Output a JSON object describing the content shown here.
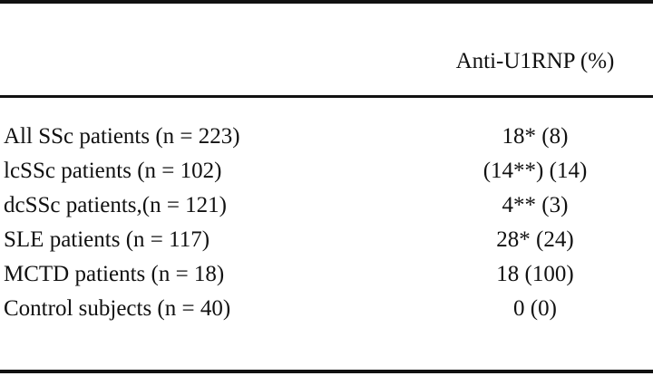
{
  "table": {
    "header": [
      "",
      "Anti-U1RNP (%)"
    ],
    "rows": [
      [
        "All SSc patients (n = 223)",
        "18* (8)"
      ],
      [
        "lcSSc patients (n = 102)",
        "(14**) (14)"
      ],
      [
        "dcSSc patients,(n = 121)",
        "4** (3)"
      ],
      [
        "SLE patients (n = 117)",
        "28* (24)"
      ],
      [
        "MCTD patients (n = 18)",
        "18 (100)"
      ],
      [
        "Control subjects (n = 40)",
        "0 (0)"
      ]
    ]
  }
}
